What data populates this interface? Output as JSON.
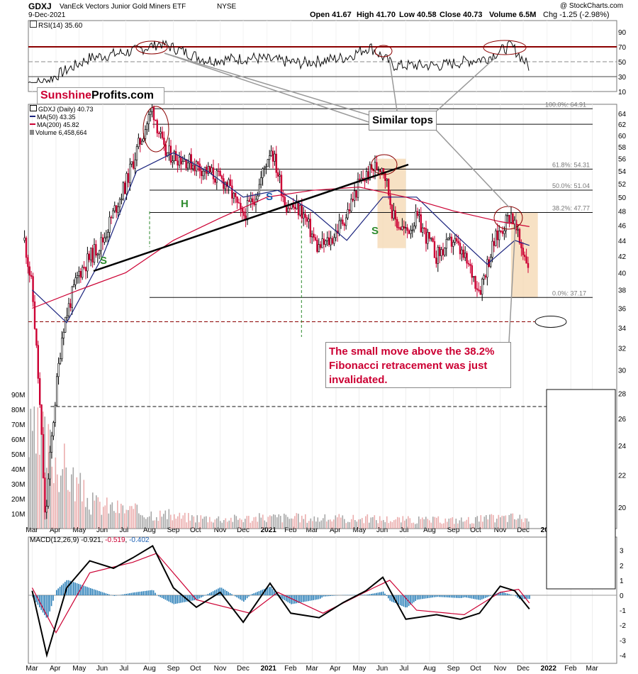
{
  "header": {
    "symbol": "GDXJ",
    "name": "VanEck Vectors Junior Gold Miners ETF",
    "exchange": "NYSE",
    "date": "9-Dec-2021",
    "open": "Open 41.67",
    "high": "High 41.70",
    "low": "Low 40.58",
    "close": "Close 40.73",
    "volume": "Volume 6.5M",
    "chg": "Chg -1.25 (-2.98%)",
    "copyright": "@ StockCharts.com"
  },
  "brand": {
    "sunshine": "Sunshine",
    "profits": "Profits.com"
  },
  "legend": {
    "price": "GDXJ (Daily) 40.73",
    "ma50": "MA(50) 43.35",
    "ma200": "MA(200) 45.82",
    "volume": "Volume 6,458,664",
    "rsi": "RSI(14) 35.60",
    "macd_label": "MACD(12,26,9)",
    "macd_v1": "-0.921",
    "macd_v2": "-0.519",
    "macd_v3": "-0.402"
  },
  "annotations": {
    "similar_tops": "Similar tops",
    "callout": "The small move above the 38.2% Fibonacci retracement was just invalidated.",
    "h": "H",
    "s_left": "S",
    "s_mid": "S",
    "s_blue": "S"
  },
  "colors": {
    "price_up": "#000000",
    "price_down": "#cc0033",
    "ma50": "#1a237e",
    "ma200": "#cc0033",
    "callout_text": "#cc0033",
    "green_letters": "#2e8b2e",
    "fib_zone": "#f5d9b5",
    "volume_bar": "#e8a0a0"
  },
  "chart_data": [
    {
      "type": "line",
      "title": "RSI(14)",
      "y_ticks": [
        90,
        70,
        50,
        30,
        10
      ],
      "ylim": [
        0,
        100
      ],
      "x": [
        "2020-03",
        "2020-05",
        "2020-07",
        "2020-08",
        "2020-10",
        "2020-12",
        "2021-02",
        "2021-04",
        "2021-05",
        "2021-06",
        "2021-08",
        "2021-10",
        "2021-11",
        "2021-12"
      ],
      "values": [
        22,
        55,
        65,
        75,
        52,
        55,
        48,
        56,
        70,
        45,
        45,
        55,
        72,
        35.6
      ]
    },
    {
      "type": "line",
      "title": "GDXJ (Daily)",
      "y_ticks": [
        64,
        62,
        60,
        58,
        56,
        54,
        52,
        50,
        48,
        46,
        44,
        42,
        40,
        38,
        36,
        34,
        32,
        30,
        28,
        26,
        24,
        22,
        20
      ],
      "log_scale": true,
      "ylim": [
        19,
        66
      ],
      "x_ticks": [
        "Mar",
        "Apr",
        "May",
        "Jun",
        "Jul",
        "Aug",
        "Sep",
        "Oct",
        "Nov",
        "Dec",
        "2021",
        "Feb",
        "Mar",
        "Apr",
        "May",
        "Jun",
        "Jul",
        "Aug",
        "Sep",
        "Oct",
        "Nov",
        "Dec",
        "2022",
        "Feb",
        "Mar"
      ],
      "series": [
        {
          "name": "GDXJ (Daily)",
          "x": [
            "2020-02-20",
            "2020-03-01",
            "2020-03-18",
            "2020-04-10",
            "2020-05-01",
            "2020-06-01",
            "2020-07-01",
            "2020-08-05",
            "2020-08-20",
            "2020-09-15",
            "2020-10-15",
            "2020-11-10",
            "2020-11-30",
            "2020-12-20",
            "2021-01-06",
            "2021-01-25",
            "2021-02-15",
            "2021-03-08",
            "2021-03-25",
            "2021-04-15",
            "2021-05-01",
            "2021-05-20",
            "2021-06-01",
            "2021-06-15",
            "2021-07-01",
            "2021-07-15",
            "2021-08-10",
            "2021-09-01",
            "2021-09-25",
            "2021-10-05",
            "2021-10-25",
            "2021-11-15",
            "2021-11-25",
            "2021-12-09"
          ],
          "values": [
            44,
            38,
            19,
            34,
            40,
            44,
            52,
            65,
            57,
            56,
            54,
            52,
            47,
            51,
            58,
            49,
            48,
            43,
            44,
            47.5,
            52,
            54.5,
            55,
            47,
            45,
            47,
            42,
            44,
            40,
            38,
            44,
            47.77,
            44,
            40.73
          ]
        },
        {
          "name": "MA(50)",
          "x": [
            "2020-03-01",
            "2020-04-15",
            "2020-06-01",
            "2020-07-15",
            "2020-09-01",
            "2020-10-15",
            "2020-12-01",
            "2021-01-15",
            "2021-03-01",
            "2021-04-15",
            "2021-06-01",
            "2021-07-15",
            "2021-09-01",
            "2021-10-15",
            "2021-11-20",
            "2021-12-09"
          ],
          "values": [
            38,
            34.5,
            42,
            54,
            57,
            54,
            50,
            51,
            48,
            44,
            50,
            50,
            45,
            41,
            44,
            43.35
          ]
        },
        {
          "name": "MA(200)",
          "x": [
            "2020-03-01",
            "2020-05-01",
            "2020-07-01",
            "2020-09-01",
            "2020-11-01",
            "2021-01-01",
            "2021-03-01",
            "2021-05-01",
            "2021-07-01",
            "2021-09-01",
            "2021-11-01",
            "2021-12-09"
          ],
          "values": [
            36,
            38,
            40,
            44,
            47,
            50,
            51,
            51.5,
            50,
            48,
            46.5,
            45.82
          ]
        }
      ],
      "fibonacci": [
        {
          "label": "100.0%: 64.91",
          "value": 64.91
        },
        {
          "label": "61.8%: 54.31",
          "value": 54.31
        },
        {
          "label": "50.0%: 51.04",
          "value": 51.04
        },
        {
          "label": "38.2%: 47.77",
          "value": 47.77
        },
        {
          "label": "0.0%: 37.17",
          "value": 37.17
        }
      ]
    },
    {
      "type": "bar",
      "title": "Volume",
      "y_ticks": [
        "90M",
        "80M",
        "70M",
        "60M",
        "50M",
        "40M",
        "30M",
        "20M",
        "10M"
      ],
      "ylim": [
        0,
        95
      ],
      "x": [
        "2020-03",
        "2020-04",
        "2020-05",
        "2020-07",
        "2020-09",
        "2020-11",
        "2021-01",
        "2021-03",
        "2021-05",
        "2021-07",
        "2021-09",
        "2021-11",
        "2021-12"
      ],
      "values": [
        60,
        40,
        18,
        12,
        8,
        7,
        8,
        7,
        7,
        6,
        6,
        8,
        6.5
      ]
    },
    {
      "type": "line",
      "title": "MACD(12,26,9)",
      "y_ticks": [
        3,
        2,
        1,
        0,
        -1,
        -2,
        -3,
        -4
      ],
      "ylim": [
        -4.5,
        3.5
      ],
      "series": [
        {
          "name": "MACD",
          "x": [
            "2020-03-01",
            "2020-03-20",
            "2020-04-15",
            "2020-05-15",
            "2020-06-15",
            "2020-07-10",
            "2020-08-05",
            "2020-09-01",
            "2020-10-01",
            "2020-11-01",
            "2020-12-01",
            "2021-01-05",
            "2021-02-01",
            "2021-03-10",
            "2021-04-10",
            "2021-05-10",
            "2021-06-01",
            "2021-07-01",
            "2021-08-10",
            "2021-09-10",
            "2021-10-05",
            "2021-11-01",
            "2021-11-20",
            "2021-12-09"
          ],
          "values": [
            0.3,
            -4,
            0.5,
            2.3,
            1.8,
            2.5,
            3.3,
            0.5,
            -0.8,
            0.2,
            -1.8,
            0.8,
            -1.2,
            -1.5,
            -0.5,
            0.3,
            1.2,
            -1.6,
            -1.3,
            -1.6,
            -1.2,
            0.6,
            0.3,
            -0.921
          ]
        },
        {
          "name": "Signal",
          "x": [
            "2020-03-01",
            "2020-04-01",
            "2020-05-15",
            "2020-07-10",
            "2020-08-10",
            "2020-10-01",
            "2020-12-10",
            "2021-01-15",
            "2021-03-15",
            "2021-05-20",
            "2021-06-10",
            "2021-07-15",
            "2021-09-15",
            "2021-11-01",
            "2021-11-25",
            "2021-12-09"
          ],
          "values": [
            0.5,
            -2.5,
            1.5,
            2.2,
            2.8,
            -0.3,
            -1.2,
            0.2,
            -1.2,
            0.5,
            1,
            -1,
            -1.3,
            0.2,
            0.4,
            -0.519
          ]
        }
      ]
    }
  ]
}
